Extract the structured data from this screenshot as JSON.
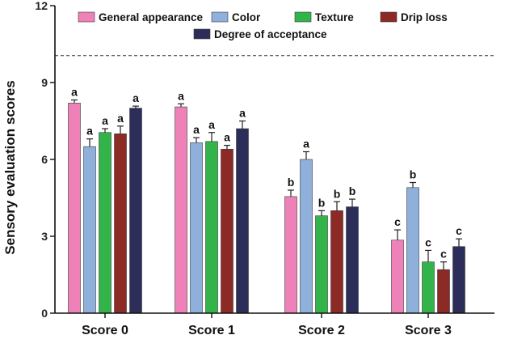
{
  "chart_data": {
    "type": "bar",
    "title": "",
    "xlabel": "",
    "ylabel": "Sensory evaluation scores",
    "ylim": [
      0,
      12
    ],
    "yticks": [
      0,
      3,
      6,
      9,
      12
    ],
    "reference_line": 10.05,
    "categories": [
      "Score 0",
      "Score 1",
      "Score 2",
      "Score 3"
    ],
    "legend_position": "top",
    "series": [
      {
        "name": "General appearance",
        "color": "#ee82b8",
        "values": [
          8.2,
          8.05,
          4.55,
          2.85
        ],
        "errors": [
          0.12,
          0.12,
          0.25,
          0.4
        ],
        "letters": [
          "a",
          "a",
          "b",
          "c"
        ]
      },
      {
        "name": "Color",
        "color": "#8eb0da",
        "values": [
          6.5,
          6.65,
          6.0,
          4.9
        ],
        "errors": [
          0.3,
          0.2,
          0.3,
          0.2
        ],
        "letters": [
          "a",
          "a",
          "a",
          "b"
        ]
      },
      {
        "name": "Texture",
        "color": "#32b44a",
        "values": [
          7.05,
          6.7,
          3.8,
          2.0
        ],
        "errors": [
          0.15,
          0.35,
          0.2,
          0.45
        ],
        "letters": [
          "a",
          "a",
          "b",
          "c"
        ]
      },
      {
        "name": "Drip loss",
        "color": "#8c2a25",
        "values": [
          7.0,
          6.4,
          4.0,
          1.7
        ],
        "errors": [
          0.3,
          0.15,
          0.35,
          0.3
        ],
        "letters": [
          "a",
          "a",
          "b",
          "c"
        ]
      },
      {
        "name": "Degree of acceptance",
        "color": "#2d2d5a",
        "values": [
          8.0,
          7.2,
          4.15,
          2.6
        ],
        "errors": [
          0.08,
          0.3,
          0.3,
          0.3
        ],
        "letters": [
          "a",
          "a",
          "b",
          "c"
        ]
      }
    ]
  }
}
